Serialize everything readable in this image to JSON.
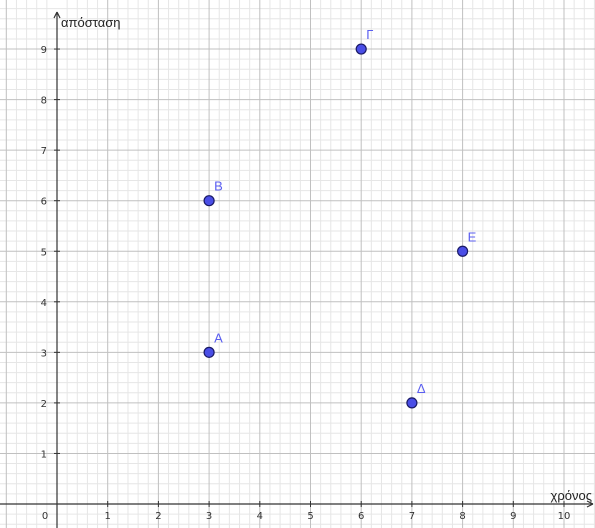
{
  "chart_data": {
    "type": "scatter",
    "xlabel": "χρόνος",
    "ylabel": "απόσταση",
    "xlim": [
      -1,
      10.8
    ],
    "ylim": [
      -0.5,
      9.8
    ],
    "x_ticks": [
      "0",
      "1",
      "2",
      "3",
      "4",
      "5",
      "6",
      "7",
      "8",
      "9",
      "10"
    ],
    "y_ticks": [
      "1",
      "2",
      "3",
      "4",
      "5",
      "6",
      "7",
      "8",
      "9"
    ],
    "grid": true,
    "minor_grid_divisions": 5,
    "points": [
      {
        "label": "Α",
        "x": 3,
        "y": 3
      },
      {
        "label": "Β",
        "x": 3,
        "y": 6
      },
      {
        "label": "Γ",
        "x": 6,
        "y": 9
      },
      {
        "label": "Δ",
        "x": 7,
        "y": 2
      },
      {
        "label": "Ε",
        "x": 8,
        "y": 5
      }
    ],
    "colors": {
      "point_fill": "#4a4ee6",
      "point_stroke": "#1a1a66",
      "label": "#5a5ef0",
      "major_grid": "#c0c0c0",
      "minor_grid": "#e6e6e6",
      "axis": "#333333"
    }
  }
}
